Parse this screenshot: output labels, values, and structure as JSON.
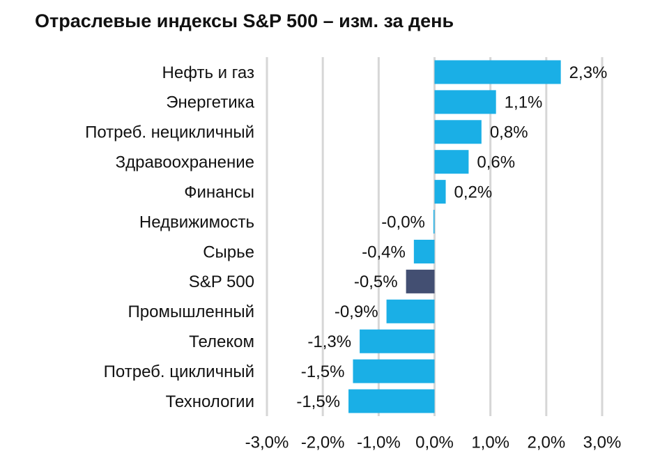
{
  "chart_data": {
    "type": "barh",
    "title": "Отраслевые индексы S&P 500 – изм. за день",
    "categories": [
      "Нефть и газ",
      "Энергетика",
      "Потреб. нецикличный",
      "Здравоохранение",
      "Финансы",
      "Недвижимость",
      "Сырье",
      "S&P 500",
      "Промышленный",
      "Телеком",
      "Потреб. цикличный",
      "Технологии"
    ],
    "values": [
      2.26,
      1.1,
      0.84,
      0.61,
      0.2,
      -0.02,
      -0.37,
      -0.51,
      -0.86,
      -1.34,
      -1.46,
      -1.54
    ],
    "value_labels": [
      "2,3%",
      "1,1%",
      "0,8%",
      "0,6%",
      "0,2%",
      "-0,0%",
      "-0,4%",
      "-0,5%",
      "-0,9%",
      "-1,3%",
      "-1,5%",
      "-1,5%"
    ],
    "colors": [
      "#1aafe6",
      "#1aafe6",
      "#1aafe6",
      "#1aafe6",
      "#1aafe6",
      "#1aafe6",
      "#1aafe6",
      "#434f72",
      "#1aafe6",
      "#1aafe6",
      "#1aafe6",
      "#1aafe6"
    ],
    "xlim": [
      -3,
      3
    ],
    "xticks": [
      {
        "value": -3,
        "label": "-3,0%"
      },
      {
        "value": -2,
        "label": "-2,0%"
      },
      {
        "value": -1,
        "label": "-1,0%"
      },
      {
        "value": 0,
        "label": "0,0%"
      },
      {
        "value": 1,
        "label": "1,0%"
      },
      {
        "value": 2,
        "label": "2,0%"
      },
      {
        "value": 3,
        "label": "3,0%"
      }
    ],
    "grid": true
  }
}
